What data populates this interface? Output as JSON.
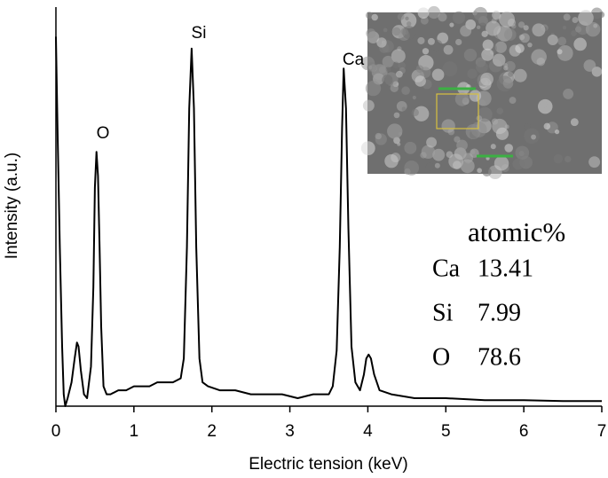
{
  "chart_data": {
    "type": "line",
    "x_label": "Electric tension (keV)",
    "y_label": "Intensity (a.u.)",
    "xlim": [
      0,
      7
    ],
    "xticks": [
      0,
      1,
      2,
      3,
      4,
      5,
      6,
      7
    ],
    "ylim": [
      0,
      100
    ],
    "color": "#000000",
    "x": [
      0,
      0.02,
      0.05,
      0.08,
      0.1,
      0.12,
      0.15,
      0.2,
      0.24,
      0.27,
      0.29,
      0.32,
      0.36,
      0.4,
      0.45,
      0.48,
      0.5,
      0.52,
      0.54,
      0.56,
      0.58,
      0.61,
      0.65,
      0.7,
      0.8,
      0.9,
      1.0,
      1.1,
      1.2,
      1.3,
      1.4,
      1.5,
      1.6,
      1.64,
      1.68,
      1.71,
      1.74,
      1.77,
      1.8,
      1.84,
      1.88,
      1.95,
      2.1,
      2.3,
      2.5,
      2.7,
      2.9,
      3.1,
      3.3,
      3.5,
      3.55,
      3.6,
      3.64,
      3.67,
      3.69,
      3.72,
      3.75,
      3.79,
      3.84,
      3.9,
      3.95,
      3.98,
      4.01,
      4.04,
      4.08,
      4.15,
      4.3,
      4.6,
      5.0,
      5.5,
      6.0,
      6.5,
      7.0
    ],
    "values": [
      93,
      70,
      40,
      15,
      3,
      0,
      2,
      6,
      12,
      16,
      15,
      9,
      3,
      2,
      10,
      30,
      55,
      64,
      58,
      40,
      20,
      5,
      3,
      3,
      4,
      4,
      5,
      5,
      5,
      6,
      6,
      6,
      7,
      12,
      40,
      75,
      90,
      75,
      40,
      12,
      6,
      5,
      4,
      4,
      3,
      3,
      3,
      2,
      3,
      3,
      5,
      14,
      40,
      70,
      85,
      75,
      45,
      15,
      6,
      4,
      8,
      12,
      13,
      12,
      8,
      4,
      3,
      2,
      2,
      1.5,
      1.5,
      1.3,
      1.3
    ],
    "peak_labels": [
      "O",
      "Si",
      "Ca"
    ],
    "composition": {
      "header": "atomic%",
      "rows": [
        [
          "Ca",
          13.41
        ],
        [
          "Si",
          7.99
        ],
        [
          "O",
          78.6
        ]
      ]
    }
  }
}
